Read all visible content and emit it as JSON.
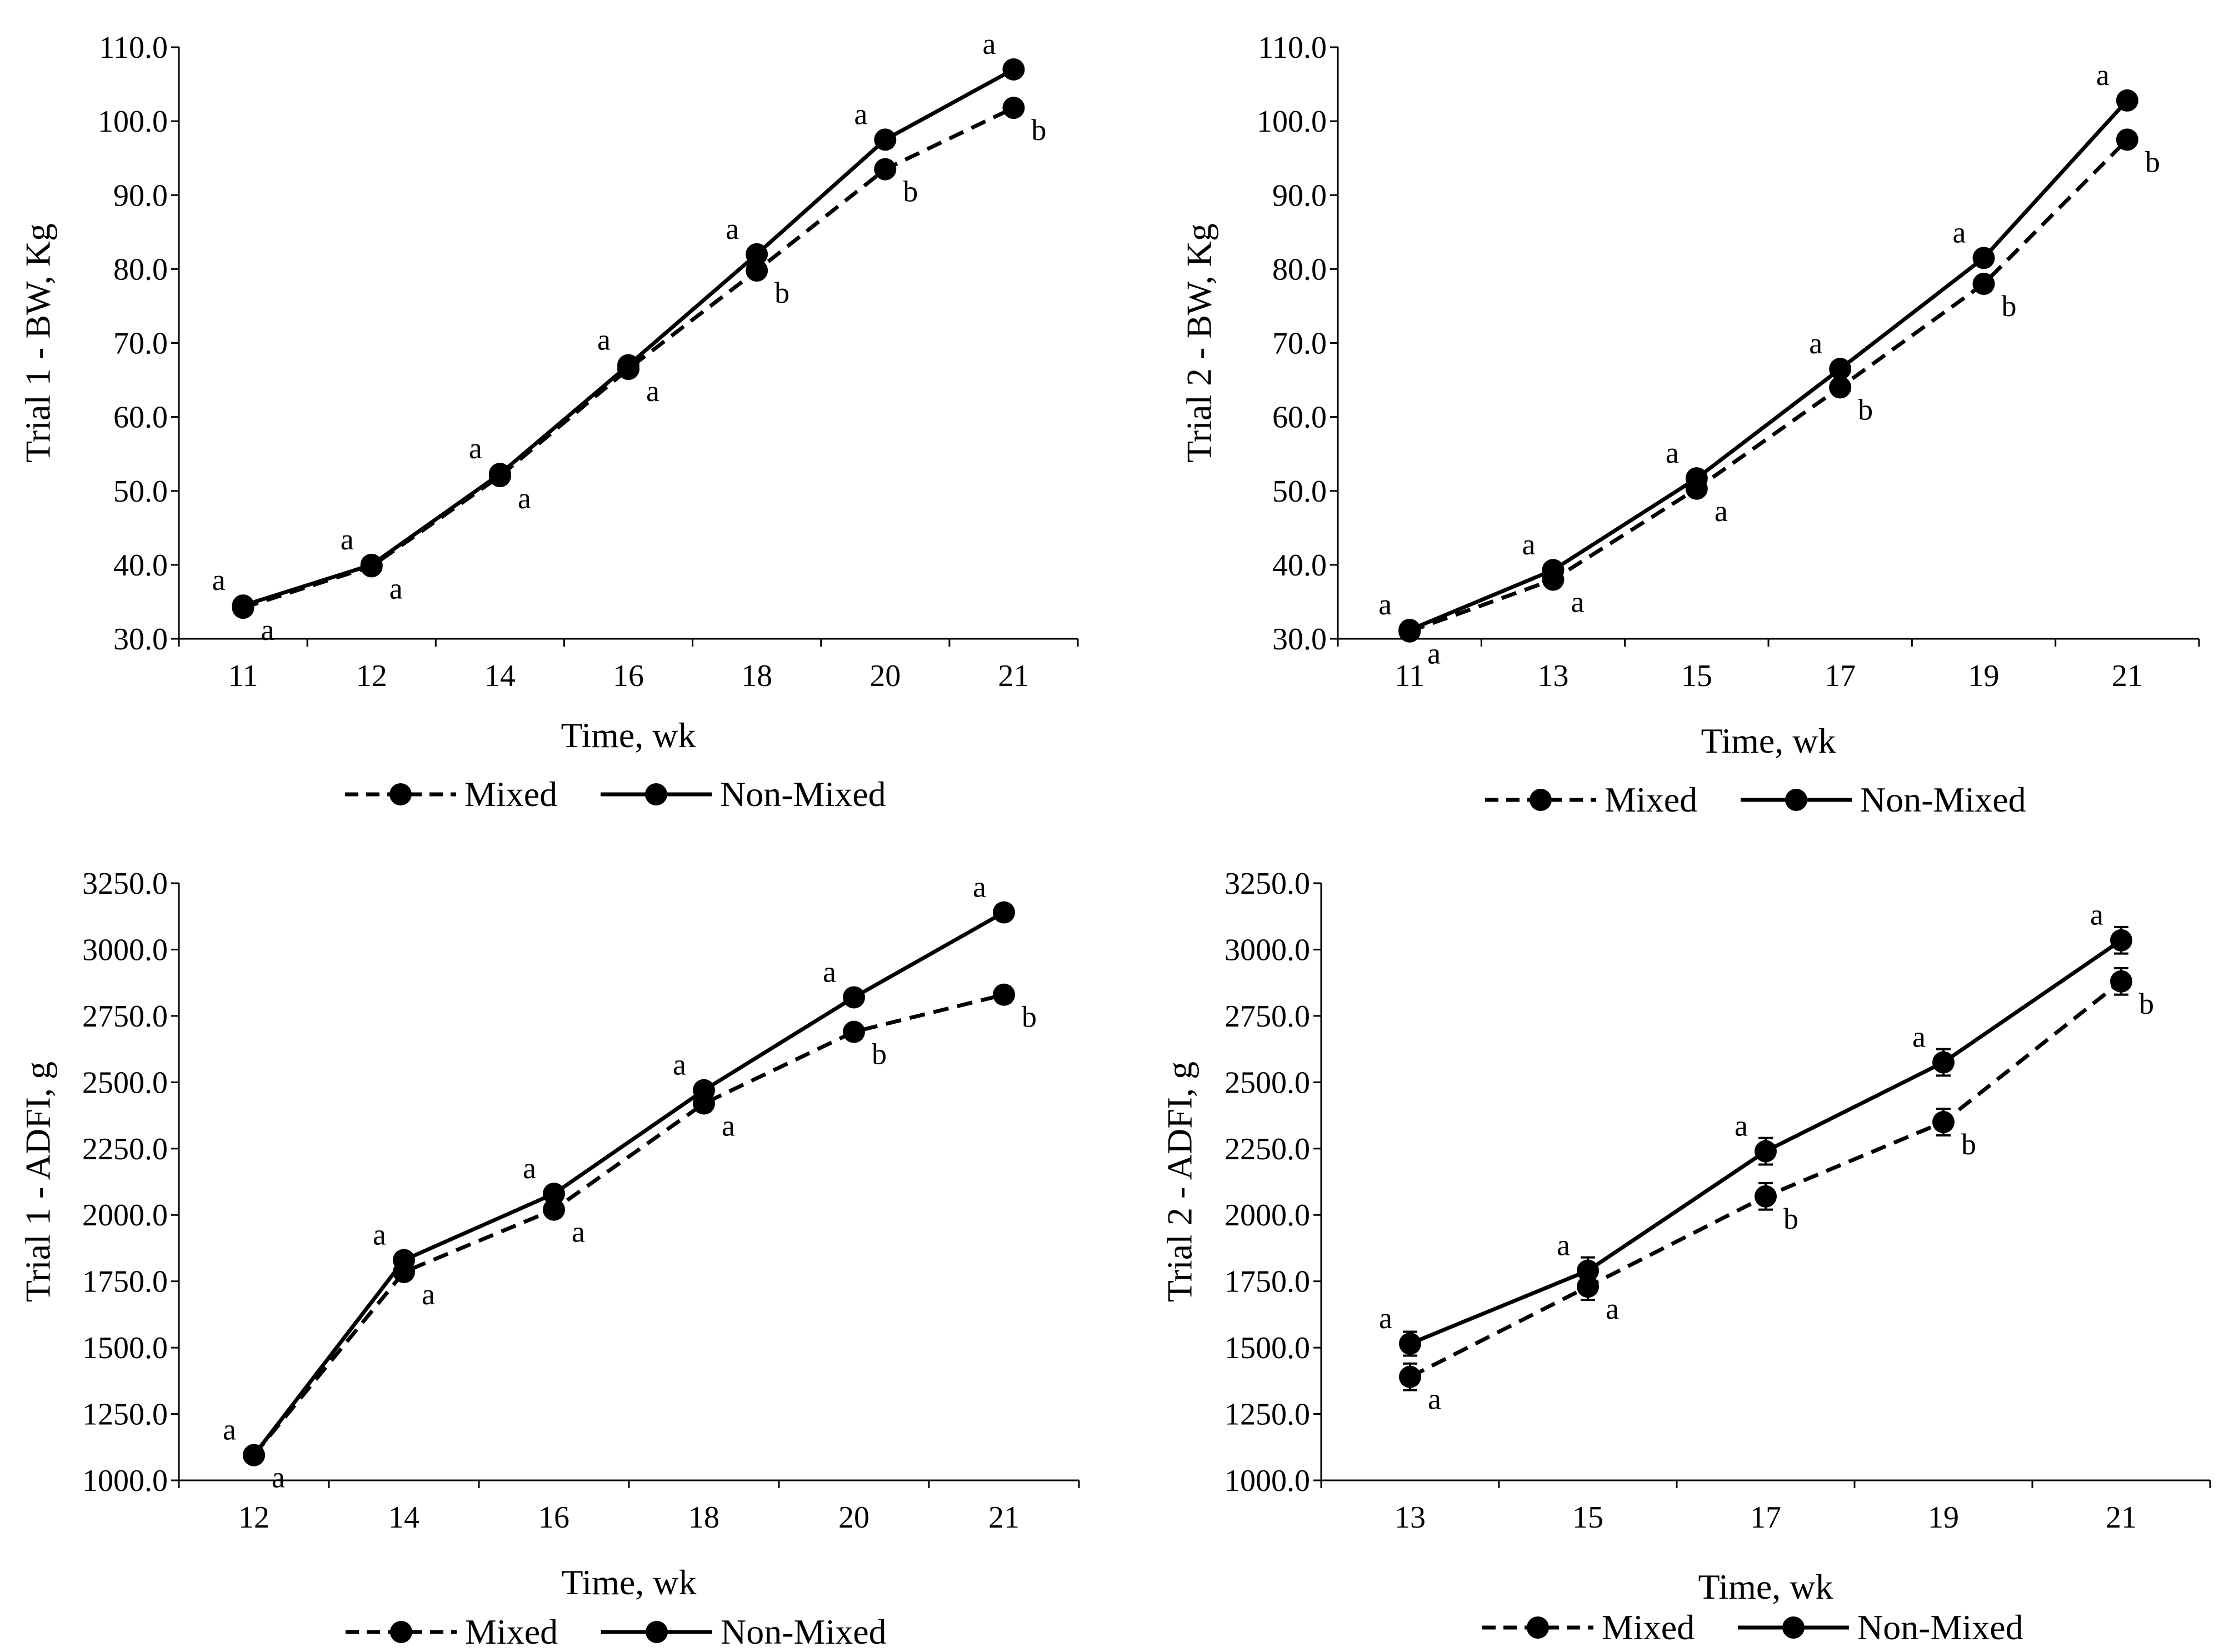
{
  "colors": {
    "line": "#000000",
    "background": "#ffffff"
  },
  "chart_data": [
    {
      "id": "t1bw",
      "type": "line",
      "ylabel": "Trial 1 - BW, Kg",
      "xlabel": "Time, wk",
      "categories": [
        "11",
        "12",
        "14",
        "16",
        "18",
        "20",
        "21"
      ],
      "ylim": [
        30,
        110
      ],
      "yticks": [
        "30.0",
        "40.0",
        "50.0",
        "60.0",
        "70.0",
        "80.0",
        "90.0",
        "100.0",
        "110.0"
      ],
      "error_bars": false,
      "legend": "bottom-center",
      "series": [
        {
          "name": "Mixed",
          "style": "dashed",
          "values": [
            34.2,
            39.8,
            52.0,
            66.5,
            79.8,
            93.5,
            101.8
          ],
          "sig": [
            "a",
            "a",
            "a",
            "a",
            "b",
            "b",
            "b"
          ]
        },
        {
          "name": "Non-Mixed",
          "style": "solid",
          "values": [
            34.5,
            40.0,
            52.3,
            67.0,
            82.0,
            97.5,
            107.0
          ],
          "sig": [
            "a",
            "a",
            "a",
            "a",
            "a",
            "a",
            "a"
          ]
        }
      ]
    },
    {
      "id": "t2bw",
      "type": "line",
      "ylabel": "Trial 2 - BW, Kg",
      "xlabel": "Time, wk",
      "categories": [
        "11",
        "13",
        "15",
        "17",
        "19",
        "21"
      ],
      "ylim": [
        30,
        110
      ],
      "yticks": [
        "30.0",
        "40.0",
        "50.0",
        "60.0",
        "70.0",
        "80.0",
        "90.0",
        "100.0",
        "110.0"
      ],
      "error_bars": false,
      "legend": "bottom-center",
      "series": [
        {
          "name": "Mixed",
          "style": "dashed",
          "values": [
            31.0,
            38.0,
            50.3,
            64.0,
            78.0,
            97.5
          ],
          "sig": [
            "a",
            "a",
            "a",
            "b",
            "b",
            "b"
          ]
        },
        {
          "name": "Non-Mixed",
          "style": "solid",
          "values": [
            31.2,
            39.3,
            51.7,
            66.5,
            81.5,
            102.8
          ],
          "sig": [
            "a",
            "a",
            "a",
            "a",
            "a",
            "a"
          ]
        }
      ]
    },
    {
      "id": "t1adfi",
      "type": "line",
      "ylabel": "Trial 1 - ADFI, g",
      "xlabel": "Time, wk",
      "categories": [
        "12",
        "14",
        "16",
        "18",
        "20",
        "21"
      ],
      "ylim": [
        1000,
        3250
      ],
      "yticks": [
        "1000.0",
        "1250.0",
        "1500.0",
        "1750.0",
        "2000.0",
        "2250.0",
        "2500.0",
        "2750.0",
        "3000.0",
        "3250.0"
      ],
      "error_bars": true,
      "legend": "bottom-center",
      "series": [
        {
          "name": "Mixed",
          "style": "dashed",
          "values": [
            1095,
            1785,
            2020,
            2420,
            2690,
            2830
          ],
          "errors": [
            20,
            20,
            25,
            30,
            25,
            30
          ],
          "sig": [
            "a",
            "a",
            "a",
            "a",
            "b",
            "b"
          ]
        },
        {
          "name": "Non-Mixed",
          "style": "solid",
          "values": [
            1095,
            1830,
            2080,
            2470,
            2820,
            3140
          ],
          "errors": [
            20,
            20,
            25,
            25,
            25,
            25
          ],
          "sig": [
            "a",
            "a",
            "a",
            "a",
            "a",
            "a"
          ]
        }
      ]
    },
    {
      "id": "t2adfi",
      "type": "line",
      "ylabel": "Trial 2 - ADFI, g",
      "xlabel": "Time, wk",
      "categories": [
        "13",
        "15",
        "17",
        "19",
        "21"
      ],
      "ylim": [
        1000,
        3250
      ],
      "yticks": [
        "1000.0",
        "1250.0",
        "1500.0",
        "1750.0",
        "2000.0",
        "2250.0",
        "2500.0",
        "2750.0",
        "3000.0",
        "3250.0"
      ],
      "error_bars": true,
      "legend": "bottom-center",
      "series": [
        {
          "name": "Mixed",
          "style": "dashed",
          "values": [
            1390,
            1730,
            2070,
            2350,
            2880
          ],
          "errors": [
            50,
            50,
            50,
            50,
            50
          ],
          "sig": [
            "a",
            "a",
            "b",
            "b",
            "b"
          ]
        },
        {
          "name": "Non-Mixed",
          "style": "solid",
          "values": [
            1515,
            1790,
            2240,
            2575,
            3035
          ],
          "errors": [
            45,
            50,
            50,
            50,
            50
          ],
          "sig": [
            "a",
            "a",
            "a",
            "a",
            "a"
          ]
        }
      ]
    }
  ]
}
